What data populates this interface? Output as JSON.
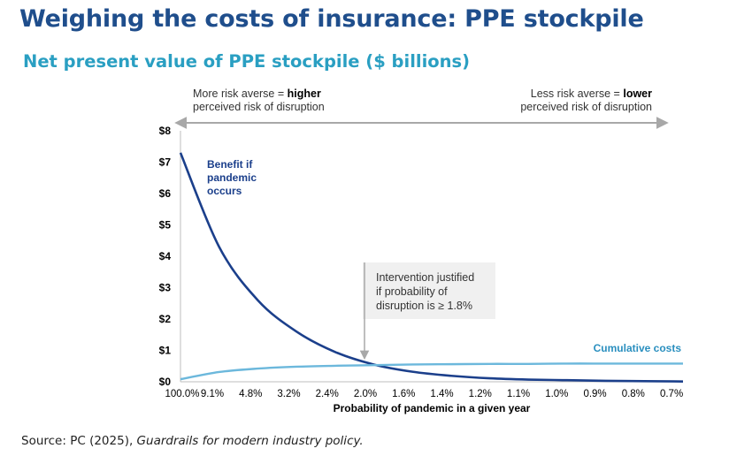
{
  "header": {
    "title": "Weighing the costs of insurance: PPE stockpile",
    "subtitle": "Net present value of PPE stockpile ($ billions)"
  },
  "risk_labels": {
    "left_prefix": "More risk averse = ",
    "left_bold": "higher",
    "left_line2": "perceived risk of disruption",
    "right_prefix": "Less risk averse = ",
    "right_bold": "lower",
    "right_line2": "perceived risk of disruption"
  },
  "annotation": {
    "lines": [
      "Intervention justified",
      "if probability of",
      "disruption is ≥ 1.8%"
    ]
  },
  "series_labels": {
    "benefit_lines": [
      "Benefit if",
      "pandemic",
      "occurs"
    ],
    "costs": "Cumulative costs"
  },
  "source": {
    "prefix": "Source: PC (2025), ",
    "italic": "Guardrails for modern industry policy."
  },
  "colors": {
    "benefit": "#1b3f8b",
    "costs": "#6cb8dc",
    "annotation_arrow": "#a8a8a8",
    "title": "#1f4e8c",
    "subtitle": "#2a9fc2"
  },
  "chart_data": {
    "type": "line",
    "xlabel": "Probability of pandemic in a given year",
    "ylabel": "",
    "ylim": [
      0,
      8
    ],
    "yticks": [
      "$0",
      "$1",
      "$2",
      "$3",
      "$4",
      "$5",
      "$6",
      "$7",
      "$8"
    ],
    "xticks": [
      "100.0%",
      "9.1%",
      "4.8%",
      "3.2%",
      "2.4%",
      "2.0%",
      "1.6%",
      "1.4%",
      "1.2%",
      "1.1%",
      "1.0%",
      "0.9%",
      "0.8%",
      "0.7%"
    ],
    "grid": false,
    "series": [
      {
        "name": "Benefit if pandemic occurs",
        "values": [
          7.3,
          4.3,
          2.6,
          1.6,
          0.95,
          0.55,
          0.32,
          0.19,
          0.11,
          0.07,
          0.05,
          0.03,
          0.02,
          0.01
        ]
      },
      {
        "name": "Cumulative costs",
        "values": [
          0.08,
          0.31,
          0.42,
          0.48,
          0.51,
          0.53,
          0.55,
          0.56,
          0.57,
          0.57,
          0.58,
          0.58,
          0.58,
          0.58
        ]
      }
    ],
    "annotation": {
      "text": "Intervention justified if probability of disruption is ≥ 1.8%",
      "threshold": "1.8%"
    }
  }
}
